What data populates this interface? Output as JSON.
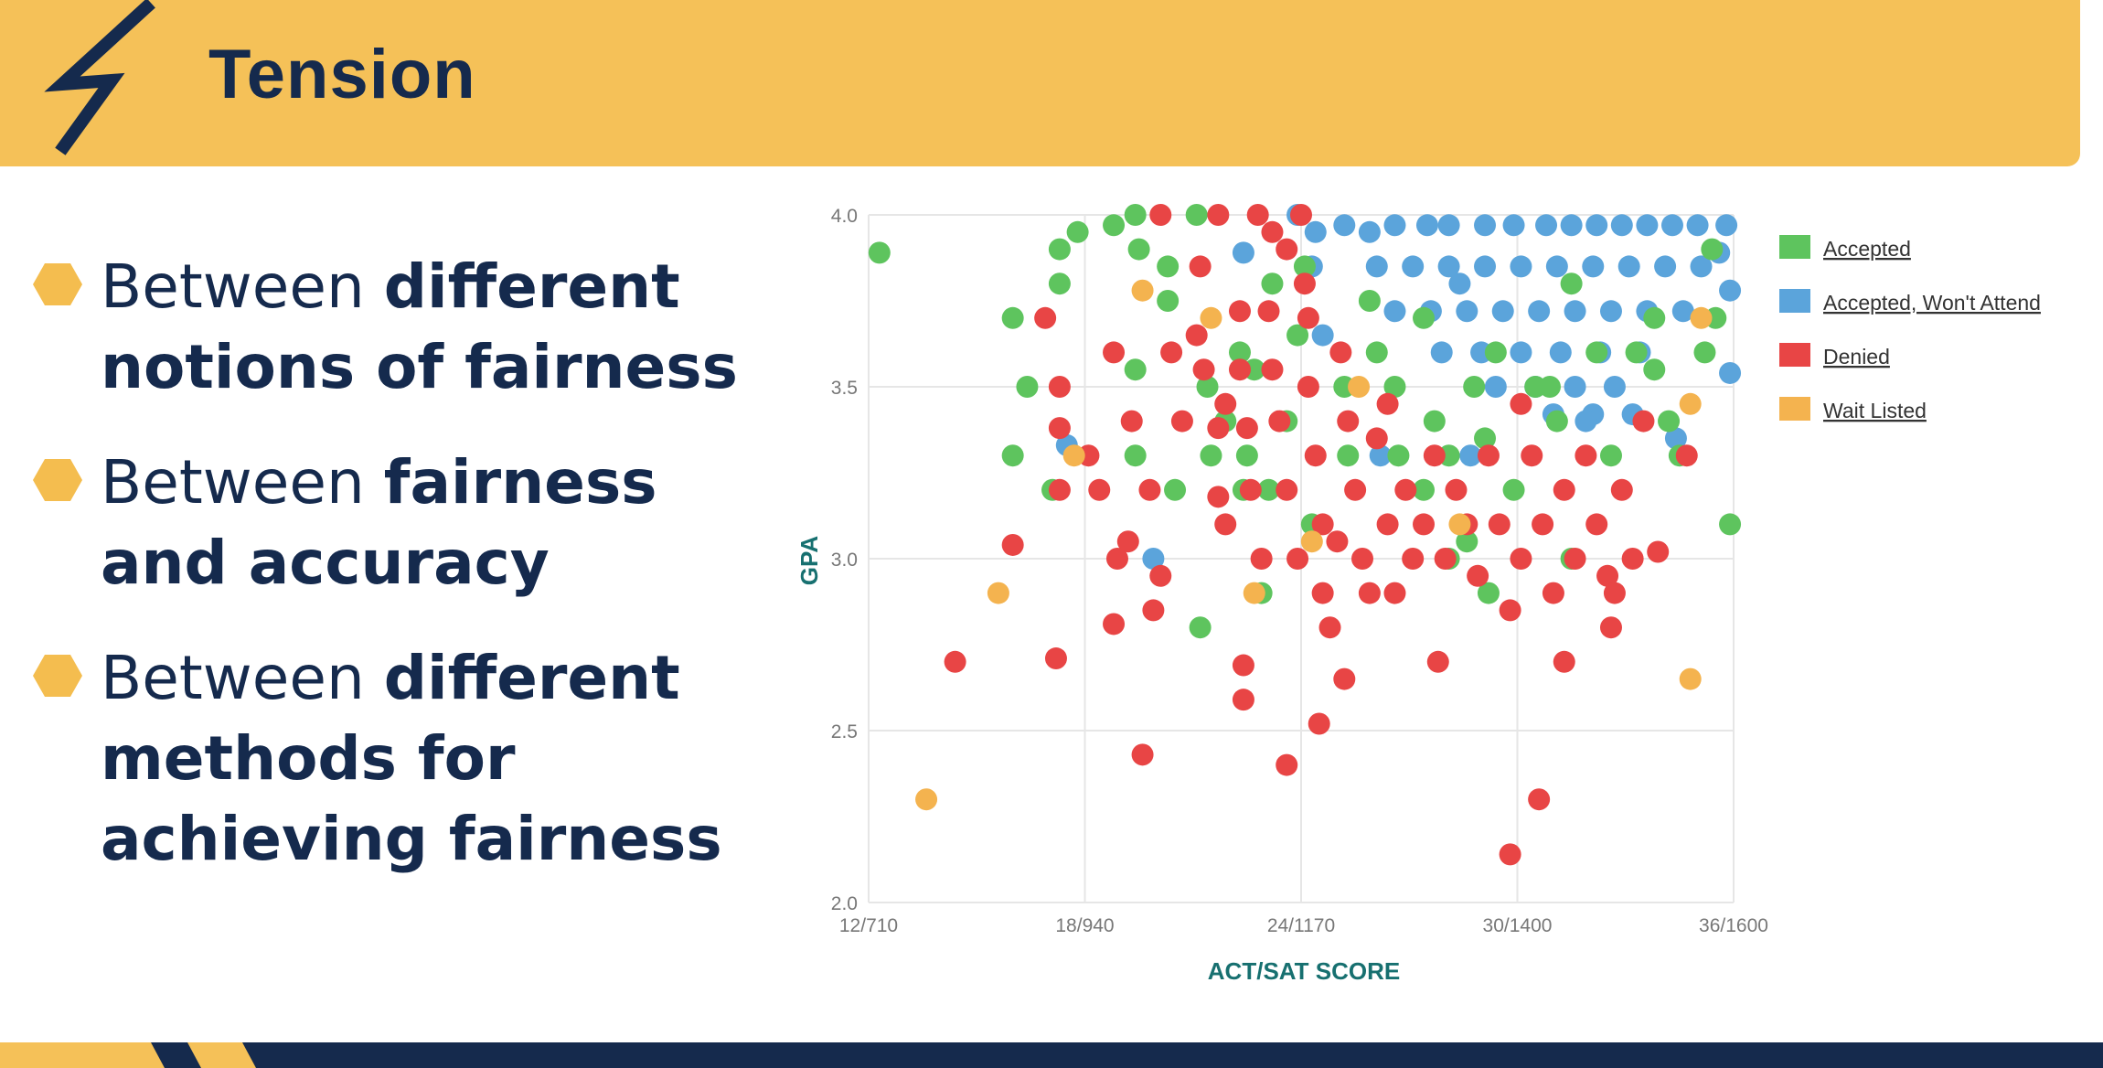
{
  "header": {
    "title": "Tension",
    "icon": "lightning-bolt-icon",
    "background": "#f5c158",
    "text_color": "#152a4d"
  },
  "bullets": [
    {
      "prefix": "Between ",
      "bold_line1": "different",
      "line2": "notions of fairness"
    },
    {
      "prefix": "Between ",
      "bold_line1": "fairness",
      "line2": "and accuracy"
    },
    {
      "prefix": "Between ",
      "bold_line1": "different",
      "line2": "methods for",
      "line3": "achieving fairness"
    }
  ],
  "colors": {
    "bullet_marker": "#f4bd4f",
    "accepted": "#5ec45e",
    "accepted_wont_attend": "#5ba4db",
    "denied": "#e84545",
    "wait_listed": "#f4b34f",
    "axis_title": "#177070"
  },
  "chart_data": {
    "type": "scatter",
    "xlabel": "ACT/SAT SCORE",
    "ylabel": "GPA",
    "xlim": [
      12,
      36
    ],
    "ylim": [
      2.0,
      4.0
    ],
    "x_ticks": [
      "12/710",
      "18/940",
      "24/1170",
      "30/1400",
      "36/1600"
    ],
    "y_ticks": [
      "2.0",
      "2.5",
      "3.0",
      "3.5",
      "4.0"
    ],
    "grid": true,
    "legend_position": "right",
    "series": [
      {
        "name": "Accepted",
        "points": [
          [
            12.3,
            3.89
          ],
          [
            16,
            3.7
          ],
          [
            16.4,
            3.5
          ],
          [
            16,
            3.3
          ],
          [
            17.3,
            3.9
          ],
          [
            17.8,
            3.95
          ],
          [
            18.8,
            3.97
          ],
          [
            17.3,
            3.8
          ],
          [
            17.1,
            3.2
          ],
          [
            19.4,
            4.0
          ],
          [
            19.5,
            3.9
          ],
          [
            20.3,
            3.85
          ],
          [
            20.3,
            3.75
          ],
          [
            20.5,
            3.2
          ],
          [
            21.1,
            4.0
          ],
          [
            21.4,
            3.5
          ],
          [
            21.9,
            3.4
          ],
          [
            21.5,
            3.3
          ],
          [
            22.3,
            3.6
          ],
          [
            22.7,
            3.55
          ],
          [
            23.1,
            3.2
          ],
          [
            23.6,
            3.4
          ],
          [
            22.9,
            2.9
          ],
          [
            21.2,
            2.8
          ],
          [
            22.4,
            3.2
          ],
          [
            23.2,
            3.8
          ],
          [
            23.9,
            3.65
          ],
          [
            25.2,
            3.5
          ],
          [
            25.3,
            3.3
          ],
          [
            26.1,
            3.6
          ],
          [
            26.6,
            3.5
          ],
          [
            27.4,
            3.2
          ],
          [
            27.7,
            3.4
          ],
          [
            28.1,
            3.3
          ],
          [
            28.6,
            3.05
          ],
          [
            29.4,
            3.6
          ],
          [
            29.9,
            3.2
          ],
          [
            30.5,
            3.5
          ],
          [
            31.1,
            3.4
          ],
          [
            31.5,
            3.0
          ],
          [
            32.6,
            3.3
          ],
          [
            33.3,
            3.6
          ],
          [
            33.8,
            3.55
          ],
          [
            34.5,
            3.3
          ],
          [
            35.2,
            3.6
          ],
          [
            35.5,
            3.7
          ],
          [
            35.4,
            3.9
          ],
          [
            35.9,
            3.1
          ],
          [
            19.4,
            3.55
          ],
          [
            19.4,
            3.3
          ],
          [
            28.1,
            3.0
          ],
          [
            29.2,
            2.9
          ],
          [
            30.9,
            3.5
          ],
          [
            26.7,
            3.3
          ],
          [
            27.4,
            3.7
          ],
          [
            24.1,
            3.85
          ],
          [
            25.9,
            3.75
          ],
          [
            31.5,
            3.8
          ],
          [
            32.2,
            3.6
          ],
          [
            34.2,
            3.4
          ],
          [
            24.3,
            3.1
          ],
          [
            22.5,
            3.3
          ],
          [
            28.8,
            3.5
          ],
          [
            29.1,
            3.35
          ],
          [
            33.8,
            3.7
          ]
        ]
      },
      {
        "name": "Accepted, Won't Attend",
        "points": [
          [
            22.4,
            3.89
          ],
          [
            23.9,
            4.0
          ],
          [
            24.4,
            3.95
          ],
          [
            25.2,
            3.97
          ],
          [
            25.9,
            3.95
          ],
          [
            26.6,
            3.97
          ],
          [
            27.5,
            3.97
          ],
          [
            28.1,
            3.97
          ],
          [
            29.1,
            3.97
          ],
          [
            29.9,
            3.97
          ],
          [
            30.8,
            3.97
          ],
          [
            31.5,
            3.97
          ],
          [
            32.2,
            3.97
          ],
          [
            32.9,
            3.97
          ],
          [
            33.6,
            3.97
          ],
          [
            34.3,
            3.97
          ],
          [
            35.0,
            3.97
          ],
          [
            35.8,
            3.97
          ],
          [
            26.1,
            3.85
          ],
          [
            27.1,
            3.85
          ],
          [
            28.1,
            3.85
          ],
          [
            29.1,
            3.85
          ],
          [
            30.1,
            3.85
          ],
          [
            31.1,
            3.85
          ],
          [
            32.1,
            3.85
          ],
          [
            33.1,
            3.85
          ],
          [
            34.1,
            3.85
          ],
          [
            35.1,
            3.85
          ],
          [
            26.6,
            3.72
          ],
          [
            27.6,
            3.72
          ],
          [
            28.6,
            3.72
          ],
          [
            29.6,
            3.72
          ],
          [
            30.6,
            3.72
          ],
          [
            31.6,
            3.72
          ],
          [
            32.6,
            3.72
          ],
          [
            33.6,
            3.72
          ],
          [
            34.6,
            3.72
          ],
          [
            27.9,
            3.6
          ],
          [
            29.0,
            3.6
          ],
          [
            30.1,
            3.6
          ],
          [
            31.2,
            3.6
          ],
          [
            32.3,
            3.6
          ],
          [
            33.4,
            3.6
          ],
          [
            29.4,
            3.5
          ],
          [
            30.5,
            3.5
          ],
          [
            31.6,
            3.5
          ],
          [
            32.7,
            3.5
          ],
          [
            31.0,
            3.42
          ],
          [
            32.1,
            3.42
          ],
          [
            33.2,
            3.42
          ],
          [
            24.6,
            3.65
          ],
          [
            24.3,
            3.85
          ],
          [
            35.9,
            3.78
          ],
          [
            35.9,
            3.54
          ],
          [
            35.6,
            3.89
          ],
          [
            17.5,
            3.33
          ],
          [
            19.9,
            3.0
          ],
          [
            34.4,
            3.35
          ],
          [
            31.9,
            3.4
          ],
          [
            28.4,
            3.8
          ],
          [
            26.2,
            3.3
          ],
          [
            28.7,
            3.3
          ]
        ]
      },
      {
        "name": "Denied",
        "points": [
          [
            14.4,
            2.7
          ],
          [
            17.2,
            2.71
          ],
          [
            18.8,
            2.81
          ],
          [
            19.6,
            2.43
          ],
          [
            22.4,
            2.69
          ],
          [
            22.4,
            2.59
          ],
          [
            23.6,
            2.4
          ],
          [
            24.5,
            2.52
          ],
          [
            25.2,
            2.65
          ],
          [
            27.8,
            2.7
          ],
          [
            29.8,
            2.14
          ],
          [
            30.6,
            2.3
          ],
          [
            31.3,
            2.7
          ],
          [
            32.6,
            2.8
          ],
          [
            16,
            3.04
          ],
          [
            16.9,
            3.7
          ],
          [
            17.3,
            3.5
          ],
          [
            17.3,
            3.38
          ],
          [
            17.3,
            3.2
          ],
          [
            18.1,
            3.3
          ],
          [
            18.4,
            3.2
          ],
          [
            18.8,
            3.6
          ],
          [
            18.9,
            3.0
          ],
          [
            19.3,
            3.4
          ],
          [
            19.8,
            3.2
          ],
          [
            20.1,
            2.95
          ],
          [
            20.4,
            3.6
          ],
          [
            20.7,
            3.4
          ],
          [
            21.1,
            3.65
          ],
          [
            21.3,
            3.55
          ],
          [
            21.7,
            3.38
          ],
          [
            21.7,
            3.18
          ],
          [
            21.9,
            3.1
          ],
          [
            22.3,
            3.72
          ],
          [
            22.3,
            3.55
          ],
          [
            22.5,
            3.38
          ],
          [
            22.6,
            3.2
          ],
          [
            22.9,
            3.0
          ],
          [
            23.1,
            3.72
          ],
          [
            23.2,
            3.55
          ],
          [
            23.4,
            3.4
          ],
          [
            23.6,
            3.2
          ],
          [
            23.9,
            3.0
          ],
          [
            24.1,
            3.8
          ],
          [
            24.2,
            3.5
          ],
          [
            24.4,
            3.3
          ],
          [
            24.6,
            3.1
          ],
          [
            24.6,
            2.9
          ],
          [
            24.8,
            2.8
          ],
          [
            25.1,
            3.6
          ],
          [
            25.3,
            3.4
          ],
          [
            25.5,
            3.2
          ],
          [
            25.7,
            3.0
          ],
          [
            25.9,
            2.9
          ],
          [
            26.1,
            3.35
          ],
          [
            26.4,
            3.1
          ],
          [
            26.6,
            2.9
          ],
          [
            26.9,
            3.2
          ],
          [
            27.1,
            3.0
          ],
          [
            27.4,
            3.1
          ],
          [
            27.7,
            3.3
          ],
          [
            28.0,
            3.0
          ],
          [
            28.3,
            3.2
          ],
          [
            28.6,
            3.1
          ],
          [
            28.9,
            2.95
          ],
          [
            29.2,
            3.3
          ],
          [
            29.5,
            3.1
          ],
          [
            29.8,
            2.85
          ],
          [
            30.1,
            3.0
          ],
          [
            30.4,
            3.3
          ],
          [
            30.7,
            3.1
          ],
          [
            31.0,
            2.9
          ],
          [
            31.3,
            3.2
          ],
          [
            31.6,
            3.0
          ],
          [
            31.9,
            3.3
          ],
          [
            32.2,
            3.1
          ],
          [
            32.5,
            2.95
          ],
          [
            32.9,
            3.2
          ],
          [
            33.2,
            3.0
          ],
          [
            33.5,
            3.4
          ],
          [
            33.9,
            3.02
          ],
          [
            34.7,
            3.3
          ],
          [
            20.1,
            4.0
          ],
          [
            21.2,
            3.85
          ],
          [
            21.7,
            4.0
          ],
          [
            22.8,
            4.0
          ],
          [
            23.2,
            3.95
          ],
          [
            23.6,
            3.9
          ],
          [
            24.0,
            4.0
          ],
          [
            24.2,
            3.7
          ],
          [
            19.2,
            3.05
          ],
          [
            19.9,
            2.85
          ],
          [
            32.7,
            2.9
          ],
          [
            21.9,
            3.45
          ],
          [
            26.4,
            3.45
          ],
          [
            30.1,
            3.45
          ],
          [
            25.0,
            3.05
          ]
        ]
      },
      {
        "name": "Wait Listed",
        "points": [
          [
            13.6,
            2.3
          ],
          [
            15.6,
            2.9
          ],
          [
            17.7,
            3.3
          ],
          [
            19.6,
            3.78
          ],
          [
            21.5,
            3.7
          ],
          [
            22.7,
            2.9
          ],
          [
            24.3,
            3.05
          ],
          [
            25.6,
            3.5
          ],
          [
            28.4,
            3.1
          ],
          [
            34.8,
            2.65
          ],
          [
            34.8,
            3.45
          ],
          [
            35.1,
            3.7
          ]
        ]
      }
    ]
  }
}
